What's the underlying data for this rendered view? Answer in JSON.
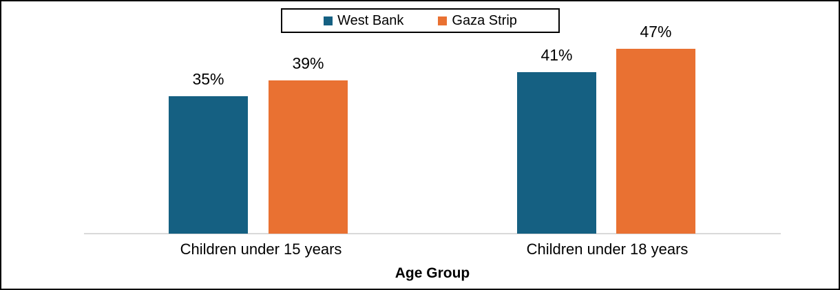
{
  "legend": {
    "items": [
      {
        "label": "West Bank",
        "color": "#156082"
      },
      {
        "label": "Gaza Strip",
        "color": "#E97132"
      }
    ]
  },
  "chart_data": {
    "type": "bar",
    "categories": [
      "Children under 15 years",
      "Children under 18 years"
    ],
    "series": [
      {
        "name": "West Bank",
        "color": "#156082",
        "values": [
          35,
          41
        ],
        "data_labels": [
          "35%",
          "41%"
        ]
      },
      {
        "name": "Gaza Strip",
        "color": "#E97132",
        "values": [
          39,
          47
        ],
        "data_labels": [
          "39%",
          "47%"
        ]
      }
    ],
    "title": "",
    "xlabel": "Age Group",
    "ylabel": "",
    "ylim": [
      0,
      50
    ],
    "value_suffix": "%",
    "grid": false,
    "y_axis_visible": false,
    "legend_position": "top-center",
    "axis_line_color": "#d9d9d9",
    "label_color": "#000000",
    "background": "#ffffff",
    "border_color": "#000000"
  }
}
